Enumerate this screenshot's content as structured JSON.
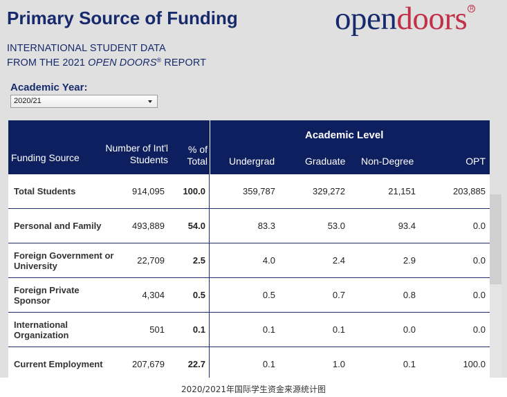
{
  "header": {
    "title": "Primary Source of Funding",
    "subtitle_line1": "INTERNATIONAL STUDENT DATA",
    "subtitle_line2_prefix": "FROM THE 2021 ",
    "subtitle_line2_italic": "OPEN DOORS",
    "subtitle_line2_reg": "®",
    "subtitle_line2_suffix": " REPORT"
  },
  "logo": {
    "part1": "open",
    "part2": "doors",
    "reg": "R"
  },
  "filter": {
    "label": "Academic Year:",
    "selected": "2020/21"
  },
  "table": {
    "group_header": "Academic Level",
    "columns": {
      "source": "Funding Source",
      "number_line1": "Number of Int'l",
      "number_line2": "Students",
      "pct_line1": "% of",
      "pct_line2": "Total",
      "undergrad": "Undergrad",
      "graduate": "Graduate",
      "nondegree": "Non-Degree",
      "opt": "OPT"
    },
    "rows": [
      {
        "source_line1": "Total Students",
        "source_line2": "",
        "number": "914,095",
        "pct": "100.0",
        "undergrad": "359,787",
        "graduate": "329,272",
        "nondegree": "21,151",
        "opt": "203,885"
      },
      {
        "source_line1": "Personal and Family",
        "source_line2": "",
        "number": "493,889",
        "pct": "54.0",
        "undergrad": "83.3",
        "graduate": "53.0",
        "nondegree": "93.4",
        "opt": "0.0"
      },
      {
        "source_line1": "Foreign Government or",
        "source_line2": "University",
        "number": "22,709",
        "pct": "2.5",
        "undergrad": "4.0",
        "graduate": "2.4",
        "nondegree": "2.9",
        "opt": "0.0"
      },
      {
        "source_line1": "Foreign Private",
        "source_line2": "Sponsor",
        "number": "4,304",
        "pct": "0.5",
        "undergrad": "0.5",
        "graduate": "0.7",
        "nondegree": "0.8",
        "opt": "0.0"
      },
      {
        "source_line1": "International",
        "source_line2": "Organization",
        "number": "501",
        "pct": "0.1",
        "undergrad": "0.1",
        "graduate": "0.1",
        "nondegree": "0.0",
        "opt": "0.0"
      },
      {
        "source_line1": "Current Employment",
        "source_line2": "",
        "number": "207,679",
        "pct": "22.7",
        "undergrad": "0.1",
        "graduate": "1.0",
        "nondegree": "0.1",
        "opt": "100.0"
      }
    ]
  },
  "caption": "2020/2021年国际学生资金来源统计图"
}
